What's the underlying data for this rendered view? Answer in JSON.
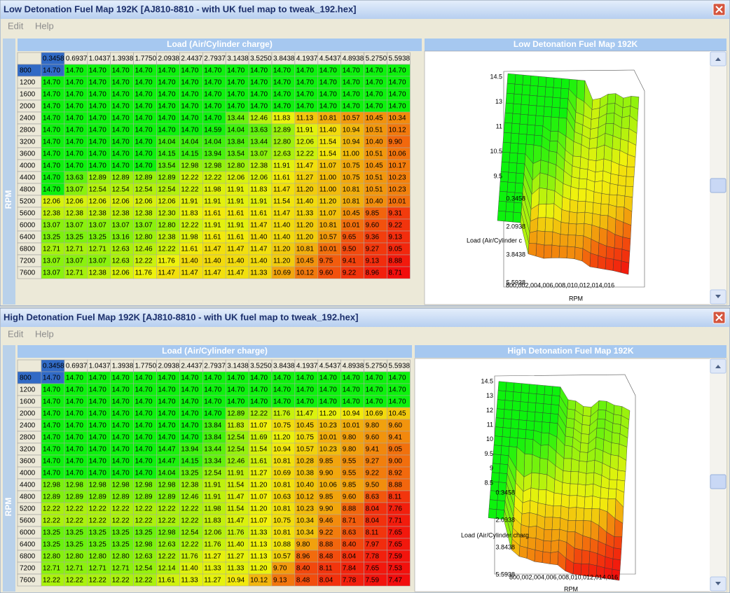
{
  "windows": [
    {
      "title": "Low Detonation Fuel Map 192K [AJ810-8810 - with UK fuel map to tweak_192.hex]",
      "menu": [
        "Edit",
        "Help"
      ],
      "load_label": "Load (Air/Cylinder charge)",
      "rpm_label": "RPM",
      "chart_title": "Low Detonation Fuel Map 192K",
      "columns": [
        "0.3458",
        "0.6937",
        "1.0437",
        "1.3938",
        "1.7750",
        "2.0938",
        "2.4437",
        "2.7937",
        "3.1438",
        "3.5250",
        "3.8438",
        "4.1937",
        "4.5437",
        "4.8938",
        "5.2750",
        "5.5938"
      ],
      "rows": [
        "800",
        "1200",
        "1600",
        "2000",
        "2400",
        "2800",
        "3200",
        "3600",
        "4000",
        "4400",
        "4800",
        "5200",
        "5600",
        "6000",
        "6400",
        "6800",
        "7200",
        "7600"
      ],
      "values": [
        [
          "14.70",
          "14.70",
          "14.70",
          "14.70",
          "14.70",
          "14.70",
          "14.70",
          "14.70",
          "14.70",
          "14.70",
          "14.70",
          "14.70",
          "14.70",
          "14.70",
          "14.70",
          "14.70"
        ],
        [
          "14.70",
          "14.70",
          "14.70",
          "14.70",
          "14.70",
          "14.70",
          "14.70",
          "14.70",
          "14.70",
          "14.70",
          "14.70",
          "14.70",
          "14.70",
          "14.70",
          "14.70",
          "14.70"
        ],
        [
          "14.70",
          "14.70",
          "14.70",
          "14.70",
          "14.70",
          "14.70",
          "14.70",
          "14.70",
          "14.70",
          "14.70",
          "14.70",
          "14.70",
          "14.70",
          "14.70",
          "14.70",
          "14.70"
        ],
        [
          "14.70",
          "14.70",
          "14.70",
          "14.70",
          "14.70",
          "14.70",
          "14.70",
          "14.70",
          "14.70",
          "14.70",
          "14.70",
          "14.70",
          "14.70",
          "14.70",
          "14.70",
          "14.70"
        ],
        [
          "14.70",
          "14.70",
          "14.70",
          "14.70",
          "14.70",
          "14.70",
          "14.70",
          "14.70",
          "13.44",
          "12.46",
          "11.83",
          "11.13",
          "10.81",
          "10.57",
          "10.45",
          "10.34"
        ],
        [
          "14.70",
          "14.70",
          "14.70",
          "14.70",
          "14.70",
          "14.70",
          "14.70",
          "14.59",
          "14.04",
          "13.63",
          "12.89",
          "11.91",
          "11.40",
          "10.94",
          "10.51",
          "10.12"
        ],
        [
          "14.70",
          "14.70",
          "14.70",
          "14.70",
          "14.70",
          "14.04",
          "14.04",
          "14.04",
          "13.84",
          "13.44",
          "12.80",
          "12.06",
          "11.54",
          "10.94",
          "10.40",
          "9.90"
        ],
        [
          "14.70",
          "14.70",
          "14.70",
          "14.70",
          "14.70",
          "14.15",
          "14.15",
          "13.94",
          "13.54",
          "13.07",
          "12.63",
          "12.22",
          "11.54",
          "11.00",
          "10.51",
          "10.06"
        ],
        [
          "14.70",
          "14.70",
          "14.70",
          "14.70",
          "14.70",
          "13.54",
          "12.98",
          "12.98",
          "12.80",
          "12.38",
          "11.91",
          "11.47",
          "11.07",
          "10.75",
          "10.45",
          "10.17"
        ],
        [
          "14.70",
          "13.63",
          "12.89",
          "12.89",
          "12.89",
          "12.89",
          "12.22",
          "12.22",
          "12.06",
          "12.06",
          "11.61",
          "11.27",
          "11.00",
          "10.75",
          "10.51",
          "10.23"
        ],
        [
          "14.70",
          "13.07",
          "12.54",
          "12.54",
          "12.54",
          "12.54",
          "12.22",
          "11.98",
          "11.91",
          "11.83",
          "11.47",
          "11.20",
          "11.00",
          "10.81",
          "10.51",
          "10.23"
        ],
        [
          "12.06",
          "12.06",
          "12.06",
          "12.06",
          "12.06",
          "12.06",
          "11.91",
          "11.91",
          "11.91",
          "11.91",
          "11.54",
          "11.40",
          "11.20",
          "10.81",
          "10.40",
          "10.01"
        ],
        [
          "12.38",
          "12.38",
          "12.38",
          "12.38",
          "12.38",
          "12.30",
          "11.83",
          "11.61",
          "11.61",
          "11.61",
          "11.47",
          "11.33",
          "11.07",
          "10.45",
          "9.85",
          "9.31"
        ],
        [
          "13.07",
          "13.07",
          "13.07",
          "13.07",
          "13.07",
          "12.80",
          "12.22",
          "11.91",
          "11.91",
          "11.47",
          "11.40",
          "11.20",
          "10.81",
          "10.01",
          "9.60",
          "9.22"
        ],
        [
          "13.25",
          "13.25",
          "13.25",
          "13.16",
          "12.80",
          "12.38",
          "11.98",
          "11.61",
          "11.61",
          "11.40",
          "11.40",
          "11.20",
          "10.57",
          "9.65",
          "9.36",
          "9.13"
        ],
        [
          "12.71",
          "12.71",
          "12.71",
          "12.63",
          "12.46",
          "12.22",
          "11.61",
          "11.47",
          "11.47",
          "11.47",
          "11.20",
          "10.81",
          "10.01",
          "9.50",
          "9.27",
          "9.05"
        ],
        [
          "13.07",
          "13.07",
          "13.07",
          "12.63",
          "12.22",
          "11.76",
          "11.40",
          "11.40",
          "11.40",
          "11.40",
          "11.20",
          "10.45",
          "9.75",
          "9.41",
          "9.13",
          "8.88"
        ],
        [
          "13.07",
          "12.71",
          "12.38",
          "12.06",
          "11.76",
          "11.47",
          "11.47",
          "11.47",
          "11.47",
          "11.33",
          "10.69",
          "10.12",
          "9.60",
          "9.22",
          "8.96",
          "8.71"
        ]
      ],
      "plot": {
        "z_ticks": [
          "14.5",
          "13",
          "11",
          "10.5",
          "9.5"
        ],
        "load_ticks": [
          "0.3458",
          "2.0938",
          "3.8438",
          "5.5938"
        ],
        "load_axis": "Load (Air/Cylinder c",
        "rpm_ticks": "800,002,004,006,008,010,012,014,016",
        "rpm_axis": "RPM"
      }
    },
    {
      "title": "High Detonation Fuel Map 192K [AJ810-8810 - with UK fuel map to tweak_192.hex]",
      "menu": [
        "Edit",
        "Help"
      ],
      "load_label": "Load (Air/Cylinder charge)",
      "rpm_label": "RPM",
      "chart_title": "High Detonation Fuel Map 192K",
      "columns": [
        "0.3458",
        "0.6937",
        "1.0437",
        "1.3938",
        "1.7750",
        "2.0938",
        "2.4437",
        "2.7937",
        "3.1438",
        "3.5250",
        "3.8438",
        "4.1937",
        "4.5437",
        "4.8938",
        "5.2750",
        "5.5938"
      ],
      "rows": [
        "800",
        "1200",
        "1600",
        "2000",
        "2400",
        "2800",
        "3200",
        "3600",
        "4000",
        "4400",
        "4800",
        "5200",
        "5600",
        "6000",
        "6400",
        "6800",
        "7200",
        "7600"
      ],
      "values": [
        [
          "14.70",
          "14.70",
          "14.70",
          "14.70",
          "14.70",
          "14.70",
          "14.70",
          "14.70",
          "14.70",
          "14.70",
          "14.70",
          "14.70",
          "14.70",
          "14.70",
          "14.70",
          "14.70"
        ],
        [
          "14.70",
          "14.70",
          "14.70",
          "14.70",
          "14.70",
          "14.70",
          "14.70",
          "14.70",
          "14.70",
          "14.70",
          "14.70",
          "14.70",
          "14.70",
          "14.70",
          "14.70",
          "14.70"
        ],
        [
          "14.70",
          "14.70",
          "14.70",
          "14.70",
          "14.70",
          "14.70",
          "14.70",
          "14.70",
          "14.70",
          "14.70",
          "14.70",
          "14.70",
          "14.70",
          "14.70",
          "14.70",
          "14.70"
        ],
        [
          "14.70",
          "14.70",
          "14.70",
          "14.70",
          "14.70",
          "14.70",
          "14.70",
          "14.70",
          "12.89",
          "12.22",
          "11.76",
          "11.47",
          "11.20",
          "10.94",
          "10.69",
          "10.45"
        ],
        [
          "14.70",
          "14.70",
          "14.70",
          "14.70",
          "14.70",
          "14.70",
          "14.70",
          "13.84",
          "11.83",
          "11.07",
          "10.75",
          "10.45",
          "10.23",
          "10.01",
          "9.80",
          "9.60"
        ],
        [
          "14.70",
          "14.70",
          "14.70",
          "14.70",
          "14.70",
          "14.70",
          "14.70",
          "13.84",
          "12.54",
          "11.69",
          "11.20",
          "10.75",
          "10.01",
          "9.80",
          "9.60",
          "9.41"
        ],
        [
          "14.70",
          "14.70",
          "14.70",
          "14.70",
          "14.70",
          "14.47",
          "13.94",
          "13.44",
          "12.54",
          "11.54",
          "10.94",
          "10.57",
          "10.23",
          "9.80",
          "9.41",
          "9.05"
        ],
        [
          "14.70",
          "14.70",
          "14.70",
          "14.70",
          "14.70",
          "14.47",
          "14.15",
          "13.34",
          "12.46",
          "11.61",
          "10.81",
          "10.28",
          "9.85",
          "9.55",
          "9.27",
          "9.00"
        ],
        [
          "14.70",
          "14.70",
          "14.70",
          "14.70",
          "14.70",
          "14.04",
          "13.25",
          "12.54",
          "11.91",
          "11.27",
          "10.69",
          "10.38",
          "9.90",
          "9.55",
          "9.22",
          "8.92"
        ],
        [
          "12.98",
          "12.98",
          "12.98",
          "12.98",
          "12.98",
          "12.98",
          "12.38",
          "11.91",
          "11.54",
          "11.20",
          "10.81",
          "10.40",
          "10.06",
          "9.85",
          "9.50",
          "8.88"
        ],
        [
          "12.89",
          "12.89",
          "12.89",
          "12.89",
          "12.89",
          "12.89",
          "12.46",
          "11.91",
          "11.47",
          "11.07",
          "10.63",
          "10.12",
          "9.85",
          "9.60",
          "8.63",
          "8.11"
        ],
        [
          "12.22",
          "12.22",
          "12.22",
          "12.22",
          "12.22",
          "12.22",
          "12.22",
          "11.98",
          "11.54",
          "11.20",
          "10.81",
          "10.23",
          "9.90",
          "8.88",
          "8.04",
          "7.76"
        ],
        [
          "12.22",
          "12.22",
          "12.22",
          "12.22",
          "12.22",
          "12.22",
          "12.22",
          "11.83",
          "11.47",
          "11.07",
          "10.75",
          "10.34",
          "9.46",
          "8.71",
          "8.04",
          "7.71"
        ],
        [
          "13.25",
          "13.25",
          "13.25",
          "13.25",
          "13.25",
          "12.98",
          "12.54",
          "12.06",
          "11.76",
          "11.33",
          "10.81",
          "10.34",
          "9.22",
          "8.63",
          "8.11",
          "7.65"
        ],
        [
          "13.25",
          "13.25",
          "13.25",
          "13.25",
          "12.98",
          "12.63",
          "12.22",
          "11.76",
          "11.40",
          "11.13",
          "10.88",
          "9.80",
          "8.88",
          "8.40",
          "7.97",
          "7.65"
        ],
        [
          "12.80",
          "12.80",
          "12.80",
          "12.80",
          "12.63",
          "12.22",
          "11.76",
          "11.27",
          "11.27",
          "11.13",
          "10.57",
          "8.96",
          "8.48",
          "8.04",
          "7.78",
          "7.59"
        ],
        [
          "12.71",
          "12.71",
          "12.71",
          "12.71",
          "12.54",
          "12.14",
          "11.40",
          "11.33",
          "11.33",
          "11.20",
          "9.70",
          "8.40",
          "8.11",
          "7.84",
          "7.65",
          "7.53"
        ],
        [
          "12.22",
          "12.22",
          "12.22",
          "12.22",
          "12.22",
          "11.61",
          "11.33",
          "11.27",
          "10.94",
          "10.12",
          "9.13",
          "8.48",
          "8.04",
          "7.78",
          "7.59",
          "7.47"
        ]
      ],
      "plot": {
        "z_ticks": [
          "14.5",
          "13",
          "12",
          "11",
          "10",
          "9.5",
          "9",
          "8.5"
        ],
        "load_ticks": [
          "0.3458",
          "2.0938",
          "3.8438",
          "5.5938"
        ],
        "load_axis": "Load (Air/Cylinder charg",
        "rpm_ticks": "800,002,004,006,008,010,012,014,016",
        "rpm_axis": "RPM"
      }
    }
  ]
}
